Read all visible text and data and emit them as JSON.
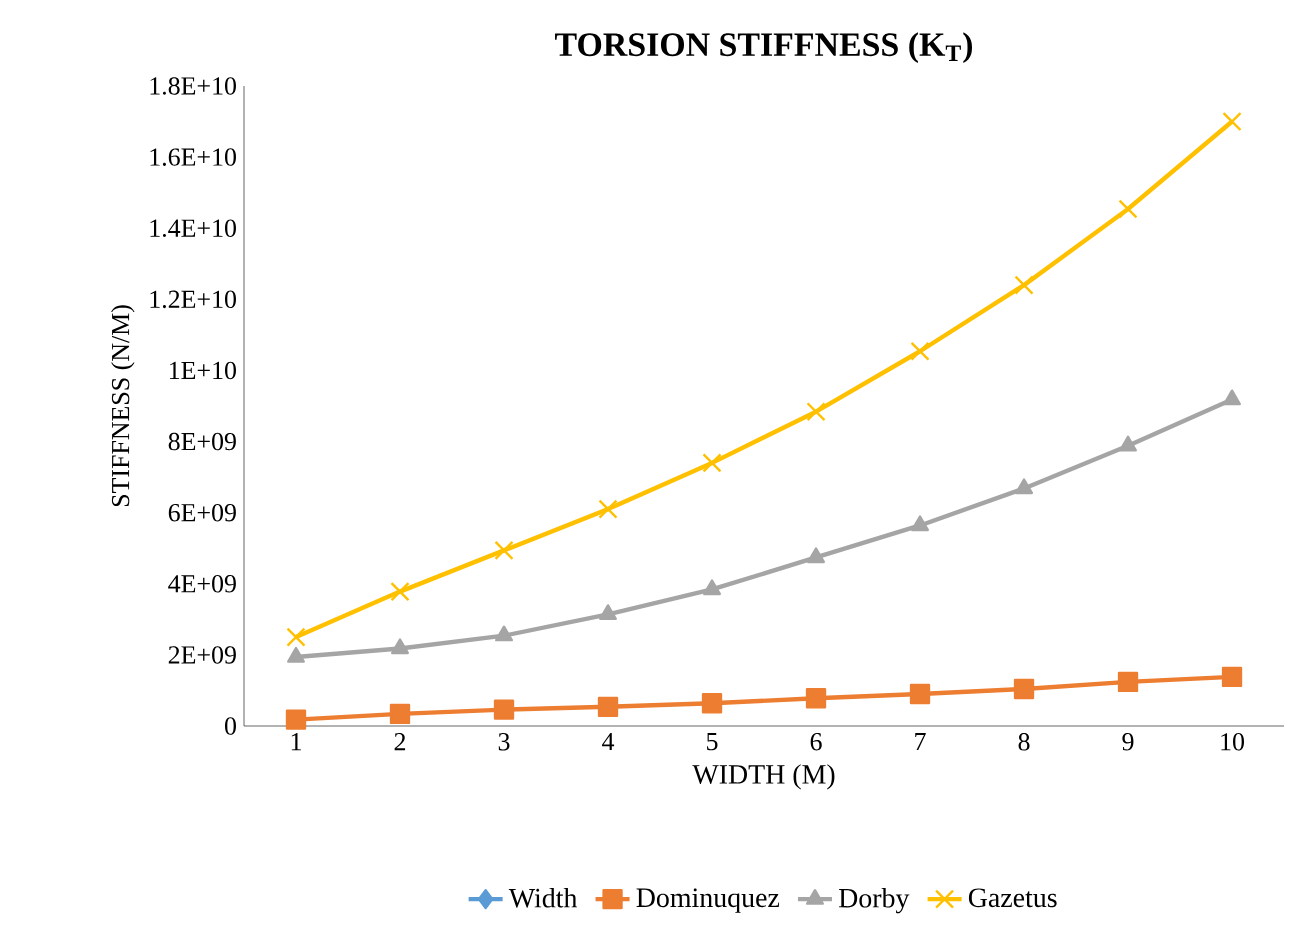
{
  "chart_data": {
    "type": "line",
    "title": "TORSION STIFFNESS (K$_{T}$)",
    "xlabel": "WIDTH (M)",
    "ylabel": "STIFFNESS (N/M)",
    "categories": [
      "1",
      "2",
      "3",
      "4",
      "5",
      "6",
      "7",
      "8",
      "9",
      "10"
    ],
    "series": [
      {
        "name": "Width",
        "color": "#5b9bd5",
        "marker": "diamond",
        "values": [
          null,
          null,
          null,
          null,
          null,
          null,
          null,
          null,
          null,
          null
        ]
      },
      {
        "name": "Dominuquez",
        "color": "#ed7d31",
        "marker": "square",
        "values": [
          180000000.0,
          340000000.0,
          460000000.0,
          540000000.0,
          640000000.0,
          780000000.0,
          900000000.0,
          1040000000.0,
          1240000000.0,
          1380000000.0
        ]
      },
      {
        "name": "Dorby",
        "color": "#a5a5a5",
        "marker": "triangle",
        "values": [
          1940000000.0,
          2180000000.0,
          2540000000.0,
          3140000000.0,
          3840000000.0,
          4740000000.0,
          5640000000.0,
          6680000000.0,
          7880000000.0,
          9180000000.0
        ]
      },
      {
        "name": "Gazetus",
        "color": "#ffc000",
        "marker": "cross",
        "values": [
          2500000000.0,
          3780000000.0,
          4940000000.0,
          6100000000.0,
          7400000000.0,
          8840000000.0,
          10540000000.0,
          12400000000.0,
          14540000000.0,
          17000000000.0
        ]
      }
    ],
    "ylim": [
      0,
      18000000000.0
    ],
    "yticks": [
      0,
      {
        "value": 2000000000.0,
        "label": "2E+09"
      },
      {
        "value": 4000000000.0,
        "label": "4E+09"
      },
      {
        "value": 6000000000.0,
        "label": "6E+09"
      },
      {
        "value": 8000000000.0,
        "label": "8E+09"
      },
      {
        "value": 10000000000.0,
        "label": "1E+10"
      },
      {
        "value": 12000000000.0,
        "label": "1.2E+10"
      },
      {
        "value": 14000000000.0,
        "label": "1.4E+10"
      },
      {
        "value": 16000000000.0,
        "label": "1.6E+10"
      },
      {
        "value": 18000000000.0,
        "label": "1.8E+10"
      }
    ],
    "grid": false,
    "legend": "bottom",
    "line_style": "solid"
  }
}
